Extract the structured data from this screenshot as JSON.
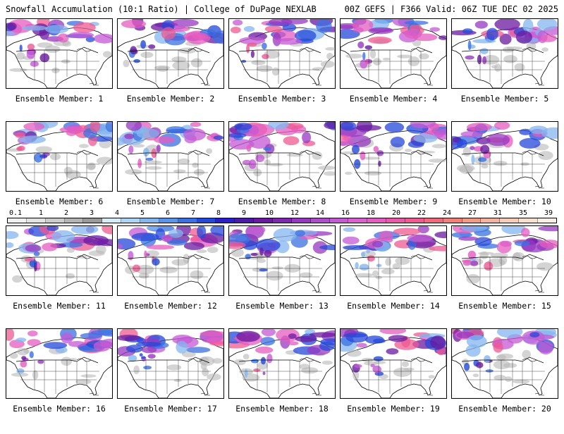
{
  "header": {
    "title_left": "Snowfall Accumulation (10:1 Ratio) | College of DuPage NEXLAB",
    "title_right": "00Z GEFS | F366 Valid: 06Z TUE DEC 02 2025"
  },
  "members": [
    {
      "label": "Ensemble Member: 1"
    },
    {
      "label": "Ensemble Member: 2"
    },
    {
      "label": "Ensemble Member: 3"
    },
    {
      "label": "Ensemble Member: 4"
    },
    {
      "label": "Ensemble Member: 5"
    },
    {
      "label": "Ensemble Member: 6"
    },
    {
      "label": "Ensemble Member: 7"
    },
    {
      "label": "Ensemble Member: 8"
    },
    {
      "label": "Ensemble Member: 9"
    },
    {
      "label": "Ensemble Member: 10"
    },
    {
      "label": "Ensemble Member: 11"
    },
    {
      "label": "Ensemble Member: 12"
    },
    {
      "label": "Ensemble Member: 13"
    },
    {
      "label": "Ensemble Member: 14"
    },
    {
      "label": "Ensemble Member: 15"
    },
    {
      "label": "Ensemble Member: 16"
    },
    {
      "label": "Ensemble Member: 17"
    },
    {
      "label": "Ensemble Member: 18"
    },
    {
      "label": "Ensemble Member: 19"
    },
    {
      "label": "Ensemble Member: 20"
    }
  ],
  "colorbar": {
    "labels": [
      "0.1",
      "1",
      "2",
      "3",
      "4",
      "5",
      "6",
      "7",
      "8",
      "9",
      "10",
      "12",
      "14",
      "16",
      "18",
      "20",
      "22",
      "24",
      "27",
      "31",
      "35",
      "39"
    ],
    "colors": [
      "#f0f0f0",
      "#e2e2e2",
      "#cccccc",
      "#b4b4b4",
      "#9a9a9a",
      "#d6ecf7",
      "#aed4f4",
      "#84b6ef",
      "#5a94e8",
      "#3a70e2",
      "#2448d8",
      "#2a1fc8",
      "#4a1aa8",
      "#6a1aa0",
      "#7e28b0",
      "#9638c0",
      "#ad4ccc",
      "#c45ad4",
      "#d860cf",
      "#e45cc0",
      "#ea58a8",
      "#ee5a92",
      "#f06a7c",
      "#f08078",
      "#f09a88",
      "#f2b4a0",
      "#f4ccb8",
      "#f7e0d0",
      "#faefe6"
    ]
  }
}
